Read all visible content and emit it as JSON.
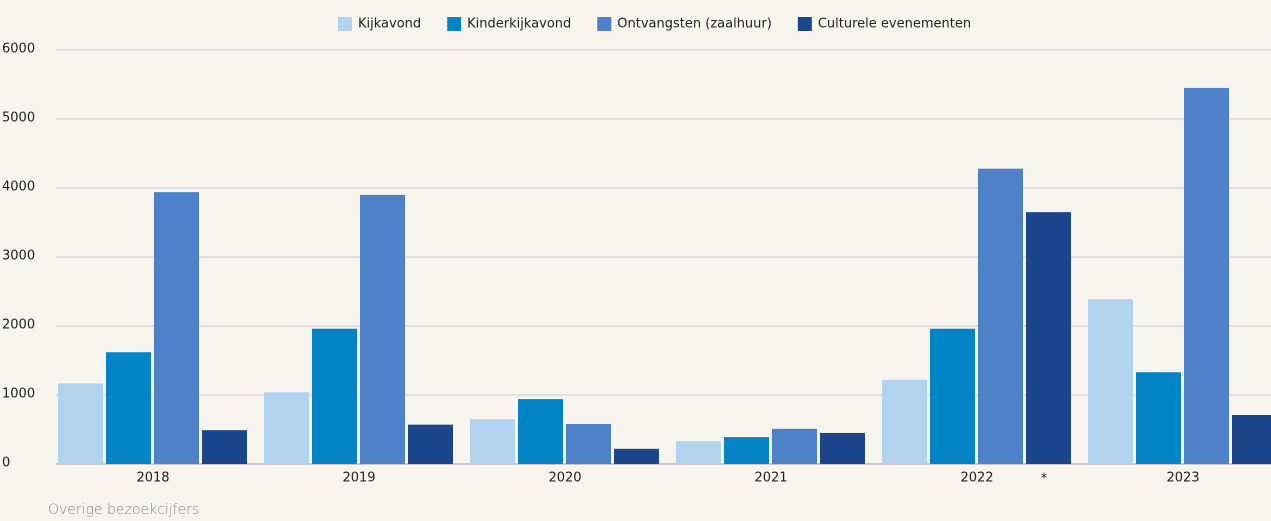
{
  "chart_data": {
    "type": "bar",
    "categories": [
      "2018",
      "2019",
      "2020",
      "2021",
      "2022",
      "2023"
    ],
    "series": [
      {
        "name": "Kijkavond",
        "color": "#b1d3f0",
        "values": [
          1170,
          1040,
          650,
          330,
          1220,
          2390
        ]
      },
      {
        "name": "Kinderkijkavond",
        "color": "#0284c7",
        "values": [
          1620,
          1960,
          940,
          390,
          1960,
          1330
        ]
      },
      {
        "name": "Ontvangsten (zaalhuur)",
        "color": "#4f81c9",
        "values": [
          3940,
          3900,
          580,
          510,
          4280,
          5450
        ]
      },
      {
        "name": "Culturele evenementen",
        "color": "#1b468c",
        "values": [
          490,
          570,
          220,
          450,
          3650,
          710
        ]
      }
    ],
    "ylim": [
      0,
      6000
    ],
    "yticks": [
      0,
      1000,
      2000,
      3000,
      4000,
      5000,
      6000
    ],
    "grid": true,
    "annotation": "*",
    "caption": "Overige bezoekcijfers"
  }
}
